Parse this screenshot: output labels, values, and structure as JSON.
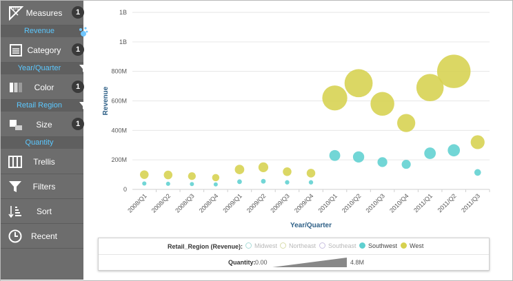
{
  "sidebar": {
    "measures": {
      "label": "Measures",
      "count": "1",
      "value": "Revenue"
    },
    "category": {
      "label": "Category",
      "count": "1",
      "value": "Year/Quarter"
    },
    "color": {
      "label": "Color",
      "count": "1",
      "value": "Retail Region"
    },
    "size": {
      "label": "Size",
      "count": "1",
      "value": "Quantity"
    },
    "tools": [
      "Trellis",
      "Filters",
      "Sort",
      "Recent"
    ]
  },
  "legend": {
    "title": "Retail_Region (Revenue):",
    "entries": [
      {
        "name": "Midwest",
        "active": false,
        "color": "#a9dcd8"
      },
      {
        "name": "Northeast",
        "active": false,
        "color": "#d8dcaa"
      },
      {
        "name": "Southeast",
        "active": false,
        "color": "#c9c0e0"
      },
      {
        "name": "Southwest",
        "active": true,
        "color": "#5fd0d0"
      },
      {
        "name": "West",
        "active": true,
        "color": "#d6d14f"
      }
    ],
    "quantity_label": "Quantity:",
    "quantity_min": "0.00",
    "quantity_max": "4.8M"
  },
  "chart_data": {
    "type": "scatter",
    "xlabel": "Year/Quarter",
    "ylabel": "Revenue",
    "y_tick_labels": [
      "0",
      "200M",
      "400M",
      "600M",
      "800M",
      "1B",
      "1B"
    ],
    "ylim": [
      0,
      1200000000
    ],
    "categories": [
      "2008/Q1",
      "2008/Q2",
      "2008/Q3",
      "2008/Q4",
      "2009/Q1",
      "2009/Q2",
      "2009/Q3",
      "2009/Q4",
      "2010/Q1",
      "2010/Q2",
      "2010/Q3",
      "2010/Q4",
      "2011/Q1",
      "2011/Q2",
      "2011/Q3"
    ],
    "size_measure": "Quantity",
    "series": [
      {
        "name": "West",
        "color": "#d6d14f",
        "values": [
          100000000,
          98000000,
          90000000,
          80000000,
          135000000,
          150000000,
          120000000,
          110000000,
          620000000,
          720000000,
          580000000,
          450000000,
          690000000,
          800000000,
          320000000
        ],
        "sizes": [
          0.05,
          0.05,
          0.04,
          0.035,
          0.06,
          0.065,
          0.05,
          0.05,
          0.42,
          0.53,
          0.38,
          0.22,
          0.5,
          0.75,
          0.13
        ]
      },
      {
        "name": "Southwest",
        "color": "#5fd0d0",
        "values": [
          40000000,
          38000000,
          36000000,
          34000000,
          52000000,
          55000000,
          48000000,
          48000000,
          230000000,
          220000000,
          185000000,
          170000000,
          245000000,
          265000000,
          115000000
        ],
        "sizes": [
          0.012,
          0.012,
          0.011,
          0.011,
          0.015,
          0.015,
          0.013,
          0.013,
          0.08,
          0.085,
          0.065,
          0.055,
          0.09,
          0.1,
          0.03
        ]
      }
    ],
    "grid": true,
    "legend_position": "bottom"
  }
}
